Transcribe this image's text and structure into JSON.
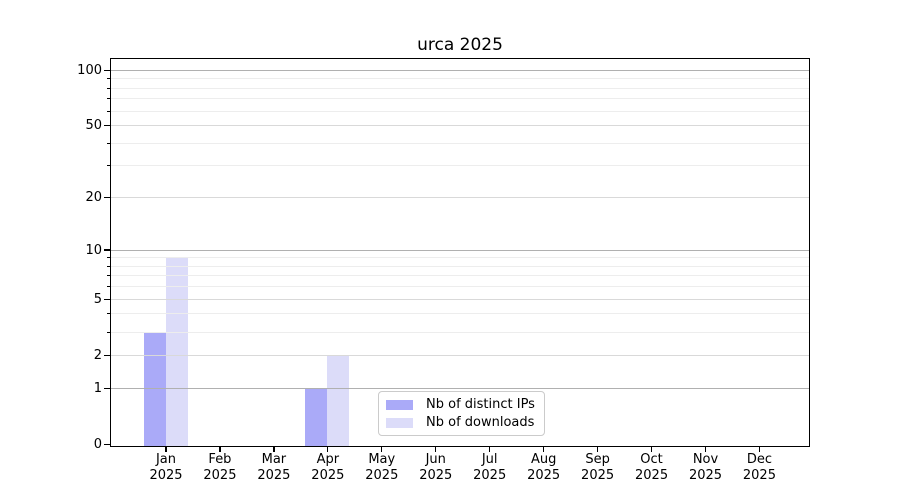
{
  "chart_data": {
    "type": "bar",
    "title": "urca 2025",
    "x_categories": [
      "Jan",
      "Feb",
      "Mar",
      "Apr",
      "May",
      "Jun",
      "Jul",
      "Aug",
      "Sep",
      "Oct",
      "Nov",
      "Dec"
    ],
    "x_year_label": "2025",
    "series": [
      {
        "name": "Nb of distinct IPs",
        "color": "#aaaaf8",
        "values": [
          3,
          0,
          0,
          1,
          0,
          0,
          0,
          0,
          0,
          0,
          0,
          0
        ]
      },
      {
        "name": "Nb of downloads",
        "color": "#dcdcf9",
        "values": [
          9,
          0,
          0,
          2,
          0,
          0,
          0,
          0,
          0,
          0,
          0,
          0
        ]
      }
    ],
    "yscale": "log1p",
    "ylim": [
      0,
      115
    ],
    "y_ticks_labeled": [
      0,
      1,
      2,
      5,
      10,
      20,
      50,
      100
    ],
    "y_ticks_minor": [
      3,
      4,
      6,
      7,
      8,
      9,
      30,
      40,
      60,
      70,
      80,
      90
    ],
    "grid": "horizontal",
    "legend_position": "lower-center",
    "colors": {
      "grid_decade": "#b0b0b0",
      "grid_mid": "#d9d9d9",
      "grid_minor": "#ededed",
      "axis": "#000000",
      "text": "#000000"
    }
  }
}
